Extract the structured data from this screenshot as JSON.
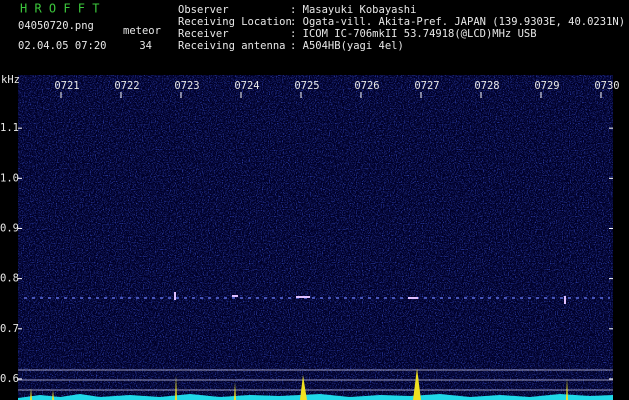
{
  "header": {
    "app": "H R O F F T",
    "file": "04050720.png",
    "meteor_label": "meteor",
    "datetime": "02.04.05 07:20",
    "meteor_count": 34,
    "fields": [
      {
        "label": "Observer",
        "value": ": Masayuki Kobayashi"
      },
      {
        "label": "Receiving Location",
        "value": ": Ogata-vill. Akita-Pref. JAPAN (139.9303E, 40.0231N)"
      },
      {
        "label": "Receiver",
        "value": ": ICOM IC-706mkII 53.74918(@LCD)MHz USB"
      },
      {
        "label": "Receiving antenna",
        "value": ": A504HB(yagi 4el)"
      }
    ]
  },
  "chart_data": {
    "type": "spectrogram",
    "y_label": "kHz",
    "categories": [
      "0721",
      "0722",
      "0723",
      "0724",
      "0725",
      "0726",
      "0727",
      "0728",
      "0729",
      "0730"
    ],
    "ylim": [
      0.558,
      1.206
    ],
    "yticks": [
      0.6,
      0.7,
      0.8,
      0.9,
      {
        "value": 1,
        "label": "1.0"
      },
      1.1
    ]
  }
}
